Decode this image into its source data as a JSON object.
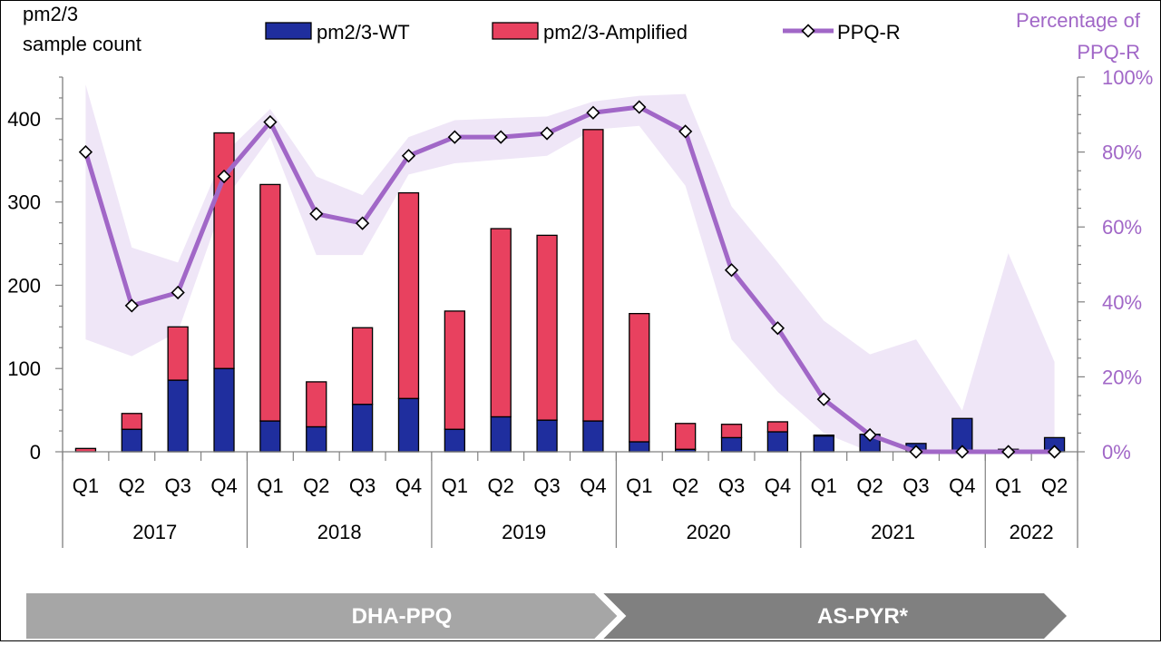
{
  "chart_data": {
    "type": "bar",
    "title": "",
    "left_axis_title": [
      "pm2/3",
      "sample count"
    ],
    "right_axis_title": [
      "Percentage of",
      "PPQ-R"
    ],
    "legend": [
      "pm2/3-WT",
      "pm2/3-Amplified",
      "PPQ-R"
    ],
    "legend_placement": "top",
    "quarters": [
      "Q1",
      "Q2",
      "Q3",
      "Q4",
      "Q1",
      "Q2",
      "Q3",
      "Q4",
      "Q1",
      "Q2",
      "Q3",
      "Q4",
      "Q1",
      "Q2",
      "Q3",
      "Q4",
      "Q1",
      "Q2",
      "Q3",
      "Q4",
      "Q1",
      "Q2"
    ],
    "years": [
      {
        "label": "2017",
        "quarters": 4
      },
      {
        "label": "2018",
        "quarters": 4
      },
      {
        "label": "2019",
        "quarters": 4
      },
      {
        "label": "2020",
        "quarters": 4
      },
      {
        "label": "2021",
        "quarters": 4
      },
      {
        "label": "2022",
        "quarters": 2
      }
    ],
    "left_axis": {
      "min": 0,
      "max": 450,
      "ticks": [
        0,
        100,
        200,
        300,
        400
      ],
      "tick_labels": [
        "0",
        "100",
        "200",
        "300",
        "400"
      ]
    },
    "right_axis": {
      "min": 0,
      "max": 100,
      "ticks": [
        0,
        20,
        40,
        60,
        80,
        100
      ],
      "tick_labels": [
        "0%",
        "20%",
        "40%",
        "60%",
        "80%",
        "100%"
      ]
    },
    "series": [
      {
        "name": "pm2/3-WT",
        "color": "#1F2E9E",
        "axis": "left",
        "values": [
          0,
          27,
          86,
          100,
          37,
          30,
          57,
          64,
          27,
          42,
          38,
          37,
          12,
          3,
          17,
          24,
          19,
          21,
          10,
          40,
          3,
          17
        ]
      },
      {
        "name": "pm2/3-Amplified",
        "color": "#E8415F",
        "axis": "left",
        "values": [
          4,
          19,
          64,
          283,
          284,
          54,
          92,
          247,
          142,
          226,
          222,
          350,
          154,
          31,
          16,
          12,
          1,
          0,
          0,
          0,
          0,
          0
        ]
      },
      {
        "name": "PPQ-R",
        "color": "#A167C7",
        "axis": "right",
        "type": "line",
        "values": [
          80,
          39,
          42.5,
          73.5,
          88,
          63.5,
          61,
          79,
          84,
          84,
          85,
          90.5,
          92,
          85.5,
          48.5,
          33,
          14,
          4.5,
          0,
          0,
          0,
          0
        ],
        "ci_lower": [
          30,
          25.5,
          32,
          67,
          84,
          52.5,
          52.5,
          74,
          77,
          78,
          79,
          86,
          87,
          71,
          30,
          16,
          5,
          0,
          0,
          0,
          0,
          0
        ],
        "ci_upper": [
          98,
          54.5,
          50.5,
          79.5,
          91.5,
          73.5,
          68.5,
          84,
          88.5,
          89,
          89.5,
          93.5,
          95,
          95.5,
          65.5,
          50.5,
          35,
          26,
          30,
          11,
          53,
          24
        ]
      }
    ],
    "treatment_periods": [
      {
        "label": "DHA-PPQ",
        "color": "#A6A6A6",
        "from_quarter": 0,
        "to_quarter": 12
      },
      {
        "label": "AS-PYR*",
        "color": "#808080",
        "from_quarter": 12,
        "to_quarter": 22
      }
    ],
    "colors": {
      "ci_band": "#EFE6F7",
      "right_axis_text": "#A167C7"
    }
  }
}
